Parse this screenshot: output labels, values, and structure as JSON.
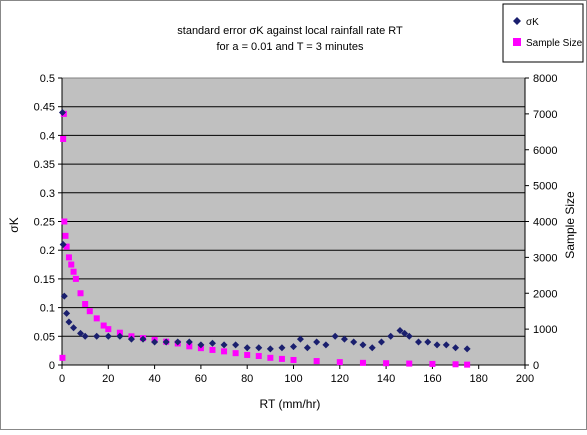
{
  "chart_data": {
    "type": "scatter",
    "title_line1": "standard error σK against local rainfall rate RT",
    "title_line2": "for a = 0.01 and T = 3 minutes",
    "xlabel": "RT (mm/hr)",
    "ylabel": "σK",
    "y2label": "Sample Size",
    "xlim": [
      0,
      200
    ],
    "ylim": [
      0,
      0.5
    ],
    "y2lim": [
      0,
      8000
    ],
    "x_ticks": [
      "0",
      "20",
      "40",
      "60",
      "80",
      "100",
      "120",
      "140",
      "160",
      "180",
      "200"
    ],
    "y_ticks": [
      "0",
      "0.05",
      "0.1",
      "0.15",
      "0.2",
      "0.25",
      "0.3",
      "0.35",
      "0.4",
      "0.45",
      "0.5"
    ],
    "y2_ticks": [
      "0",
      "1000",
      "2000",
      "3000",
      "4000",
      "5000",
      "6000",
      "7000",
      "8000"
    ],
    "grid": "horizontal",
    "legend_position": "top-right",
    "series": [
      {
        "name": "σK",
        "axis": "left",
        "color": "#1a1f6e",
        "marker": "diamond",
        "x": [
          0.2,
          0.5,
          1,
          2,
          3,
          5,
          8,
          10,
          15,
          20,
          25,
          30,
          35,
          40,
          45,
          50,
          55,
          60,
          65,
          70,
          75,
          80,
          85,
          90,
          95,
          100,
          103,
          106,
          110,
          114,
          118,
          122,
          126,
          130,
          134,
          138,
          142,
          146,
          148,
          150,
          154,
          158,
          162,
          166,
          170,
          175
        ],
        "y": [
          0.44,
          0.21,
          0.12,
          0.09,
          0.075,
          0.065,
          0.055,
          0.05,
          0.05,
          0.05,
          0.05,
          0.045,
          0.045,
          0.04,
          0.04,
          0.04,
          0.04,
          0.035,
          0.038,
          0.035,
          0.035,
          0.03,
          0.03,
          0.028,
          0.03,
          0.032,
          0.045,
          0.03,
          0.04,
          0.035,
          0.05,
          0.045,
          0.04,
          0.035,
          0.03,
          0.04,
          0.05,
          0.06,
          0.055,
          0.05,
          0.04,
          0.04,
          0.035,
          0.035,
          0.03,
          0.028
        ]
      },
      {
        "name": "Sample Size",
        "axis": "right",
        "color": "#ff00ff",
        "marker": "square",
        "x": [
          0.2,
          0.5,
          0.8,
          1,
          1.5,
          2,
          3,
          4,
          5,
          6,
          8,
          10,
          12,
          15,
          18,
          20,
          25,
          30,
          35,
          40,
          45,
          50,
          55,
          60,
          65,
          70,
          75,
          80,
          85,
          90,
          95,
          100,
          110,
          120,
          130,
          140,
          150,
          160,
          170,
          175
        ],
        "y": [
          200,
          6300,
          7000,
          4000,
          3600,
          3300,
          3000,
          2800,
          2600,
          2400,
          2000,
          1700,
          1500,
          1300,
          1100,
          1000,
          900,
          800,
          750,
          700,
          650,
          600,
          520,
          470,
          420,
          380,
          330,
          280,
          250,
          200,
          170,
          140,
          110,
          80,
          60,
          50,
          40,
          30,
          20,
          10
        ]
      }
    ]
  }
}
